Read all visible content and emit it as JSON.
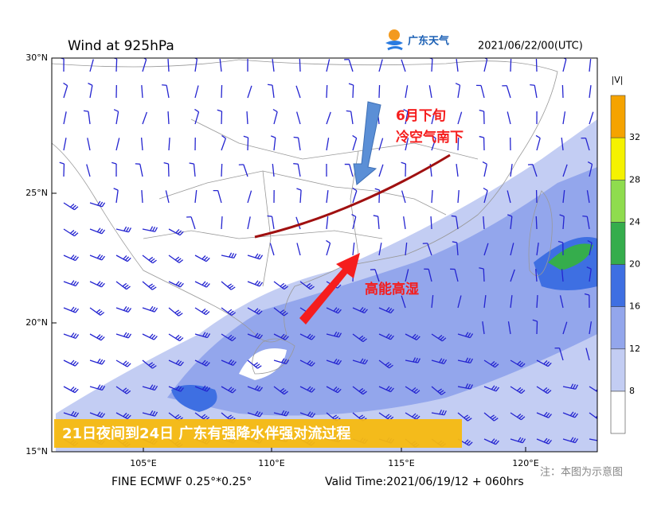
{
  "header": {
    "title": "Wind at 925hPa",
    "logo_text": "广东天气",
    "time": "2021/06/22/00(UTC)"
  },
  "map": {
    "lat_labels": [
      "30°N",
      "25°N",
      "20°N",
      "15°N"
    ],
    "lon_labels": [
      "105°E",
      "110°E",
      "115°E",
      "120°E"
    ]
  },
  "colorbar": {
    "title": "|V|",
    "ticks": [
      "8",
      "12",
      "16",
      "20",
      "24",
      "28",
      "32"
    ],
    "colors": [
      "#ffffff",
      "#c3cdf3",
      "#93a6ec",
      "#3e6fe2",
      "#35ad4c",
      "#8fdc4e",
      "#f5f200",
      "#f5a300"
    ]
  },
  "annotations": {
    "cold_air": [
      "6月下旬",
      "冷空气南下"
    ],
    "moist": "高能高湿",
    "banner": "21日夜间到24日 广东有强降水伴强对流过程"
  },
  "footer": {
    "model": "FINE ECMWF 0.25°*0.25°",
    "valid": "Valid Time:2021/06/19/12 + 060hrs",
    "note": "注：本图为示意图"
  }
}
